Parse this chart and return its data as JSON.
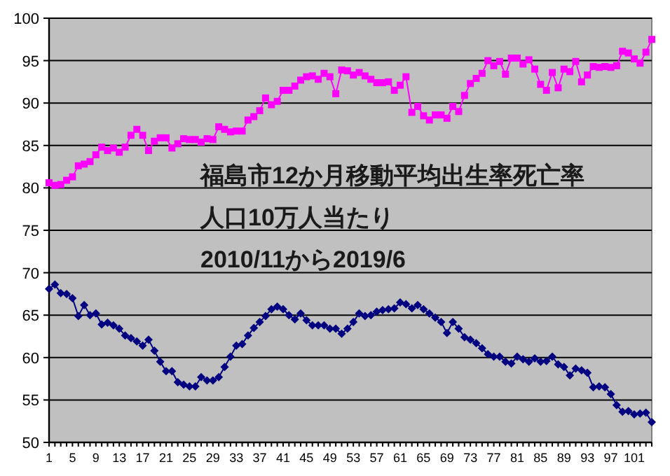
{
  "chart_data": {
    "type": "line",
    "title": "福島市12か月移動平均出生率死亡率",
    "subtitle": "人口10万人当たり",
    "annotations": [
      "2010/11から2019/6"
    ],
    "categories": [
      "1",
      null,
      null,
      null,
      "5",
      null,
      null,
      null,
      "9",
      null,
      null,
      null,
      "13",
      null,
      null,
      null,
      "17",
      null,
      null,
      null,
      "21",
      null,
      null,
      null,
      "25",
      null,
      null,
      null,
      "29",
      null,
      null,
      null,
      "33",
      null,
      null,
      null,
      "37",
      null,
      null,
      null,
      "41",
      null,
      null,
      null,
      "45",
      null,
      null,
      null,
      "49",
      null,
      null,
      null,
      "53",
      null,
      null,
      null,
      "57",
      null,
      null,
      null,
      "61",
      null,
      null,
      null,
      "65",
      null,
      null,
      null,
      "69",
      null,
      null,
      null,
      "73",
      null,
      null,
      null,
      "77",
      null,
      null,
      null,
      "81",
      null,
      null,
      null,
      "85",
      null,
      null,
      null,
      "89",
      null,
      null,
      null,
      "93",
      null,
      null,
      null,
      "97",
      null,
      null,
      null,
      "101",
      null,
      null,
      null
    ],
    "series": [
      {
        "color": "#ff00ff",
        "marker": "square",
        "values": [
          80.6,
          80.3,
          80.4,
          80.9,
          81.3,
          82.6,
          82.8,
          83.1,
          83.9,
          84.8,
          84.4,
          84.7,
          84.2,
          84.8,
          86.2,
          86.9,
          86.2,
          84.4,
          85.5,
          85.9,
          85.9,
          84.7,
          85.2,
          85.8,
          85.7,
          85.7,
          85.4,
          85.8,
          85.7,
          87.2,
          86.9,
          86.6,
          86.7,
          86.7,
          88.0,
          88.4,
          89.1,
          90.6,
          89.8,
          90.2,
          91.5,
          91.5,
          92.0,
          92.7,
          93.1,
          93.2,
          92.8,
          93.5,
          93.1,
          91.1,
          93.9,
          93.8,
          93.3,
          93.6,
          93.2,
          92.8,
          92.4,
          92.4,
          92.5,
          91.5,
          92.1,
          93.1,
          88.9,
          89.6,
          88.5,
          88.0,
          88.6,
          88.6,
          88.2,
          89.6,
          89.0,
          90.9,
          92.3,
          92.9,
          93.5,
          95.0,
          94.4,
          94.9,
          93.4,
          95.3,
          95.3,
          94.6,
          95.1,
          94.0,
          92.2,
          91.5,
          93.6,
          91.8,
          94.0,
          93.7,
          94.9,
          92.5,
          93.3,
          94.3,
          94.2,
          94.3,
          94.2,
          94.4,
          96.1,
          95.9,
          95.2,
          94.7,
          96.0,
          97.5
        ]
      },
      {
        "color": "#000080",
        "marker": "diamond",
        "values": [
          68.1,
          68.6,
          67.6,
          67.5,
          67.0,
          64.9,
          66.2,
          65.0,
          65.2,
          63.9,
          64.1,
          63.8,
          63.4,
          62.6,
          62.3,
          61.9,
          61.4,
          62.1,
          60.8,
          59.5,
          58.4,
          58.4,
          57.1,
          56.8,
          56.6,
          56.6,
          57.7,
          57.3,
          57.3,
          57.7,
          58.9,
          60.1,
          61.4,
          61.6,
          62.6,
          63.5,
          64.2,
          64.9,
          65.7,
          66.0,
          65.7,
          65.0,
          64.5,
          65.2,
          64.4,
          63.8,
          63.8,
          63.8,
          63.4,
          63.4,
          62.8,
          63.4,
          64.2,
          65.2,
          64.9,
          65.0,
          65.4,
          65.6,
          65.7,
          65.8,
          66.5,
          66.3,
          65.8,
          66.2,
          65.7,
          65.2,
          64.7,
          64.2,
          62.9,
          64.2,
          63.4,
          62.4,
          62.1,
          61.7,
          61.1,
          60.4,
          60.1,
          60.1,
          59.5,
          59.3,
          60.1,
          59.8,
          59.5,
          59.9,
          59.5,
          59.6,
          60.1,
          59.2,
          58.9,
          57.9,
          58.7,
          58.5,
          58.2,
          56.5,
          56.6,
          56.5,
          55.7,
          54.4,
          53.6,
          53.7,
          53.3,
          53.4,
          53.5,
          52.4
        ]
      }
    ],
    "ylim": [
      50,
      100
    ],
    "yticks": [
      50,
      55,
      60,
      65,
      70,
      75,
      80,
      85,
      90,
      95,
      100
    ],
    "grid": "y"
  }
}
